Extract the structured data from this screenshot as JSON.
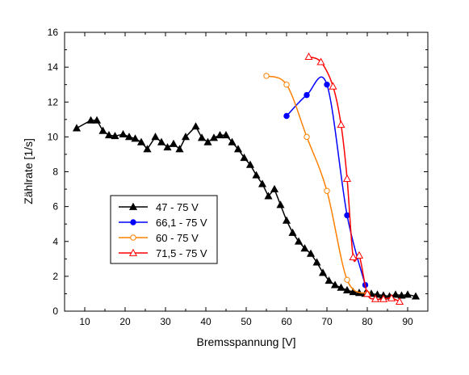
{
  "chart_data": {
    "type": "line",
    "xlabel": "Bremsspannung [V]",
    "ylabel": "Zählrate [1/s]",
    "xlim": [
      5,
      95
    ],
    "ylim": [
      0,
      16
    ],
    "xticks": [
      10,
      20,
      30,
      40,
      50,
      60,
      70,
      80,
      90
    ],
    "yticks": [
      0,
      2,
      4,
      6,
      8,
      10,
      12,
      14,
      16
    ],
    "grid": false,
    "legend_position": "lower-left",
    "series": [
      {
        "name": "47 - 75 V",
        "color": "#000000",
        "marker": "triangle-filled",
        "smooth": false,
        "x": [
          8,
          11.5,
          13,
          14.5,
          16,
          17.5,
          19.5,
          21,
          22.5,
          24,
          25.5,
          27.5,
          29,
          30.5,
          32,
          33.5,
          35,
          37.5,
          39,
          40.5,
          42,
          43.5,
          45,
          46.5,
          48,
          49.5,
          51,
          52.5,
          54,
          55.5,
          57,
          58.5,
          60,
          61.5,
          63,
          64.5,
          66,
          67.5,
          69,
          70.5,
          72,
          73.5,
          75,
          76.5,
          78,
          79.5,
          81,
          82.5,
          84,
          85.5,
          87,
          88.5,
          90,
          92
        ],
        "y": [
          10.5,
          10.95,
          10.95,
          10.35,
          10.1,
          10.05,
          10.15,
          10.0,
          9.9,
          9.7,
          9.3,
          10.0,
          9.7,
          9.4,
          9.6,
          9.3,
          10.0,
          10.6,
          9.95,
          9.7,
          9.95,
          10.1,
          10.1,
          9.7,
          9.3,
          8.8,
          8.4,
          7.8,
          7.3,
          6.6,
          7.0,
          6.1,
          5.2,
          4.5,
          4.0,
          3.6,
          3.3,
          2.8,
          2.2,
          1.75,
          1.5,
          1.35,
          1.2,
          1.1,
          1.05,
          1.0,
          1.0,
          0.95,
          0.9,
          0.85,
          0.95,
          0.9,
          0.95,
          0.85
        ]
      },
      {
        "name": "66,1 - 75 V",
        "color": "#0000ff",
        "marker": "circle-filled",
        "smooth": true,
        "x": [
          60,
          65,
          70,
          75,
          79.5
        ],
        "y": [
          11.2,
          12.4,
          13.0,
          5.5,
          1.5
        ]
      },
      {
        "name": "60 - 75 V",
        "color": "#ff8000",
        "marker": "circle-open",
        "smooth": true,
        "x": [
          55,
          60,
          65,
          70,
          75,
          80
        ],
        "y": [
          13.5,
          13.0,
          10.0,
          6.9,
          1.8,
          1.0
        ]
      },
      {
        "name": "71,5 - 75 V",
        "color": "#ff0000",
        "marker": "triangle-open",
        "smooth": true,
        "x": [
          65.5,
          68.5,
          71.5,
          73.5,
          75,
          76.5,
          78,
          80,
          82,
          84,
          86,
          88
        ],
        "y": [
          14.6,
          14.3,
          12.9,
          10.7,
          7.6,
          3.1,
          3.2,
          1.0,
          0.7,
          0.7,
          0.75,
          0.55
        ]
      }
    ]
  }
}
